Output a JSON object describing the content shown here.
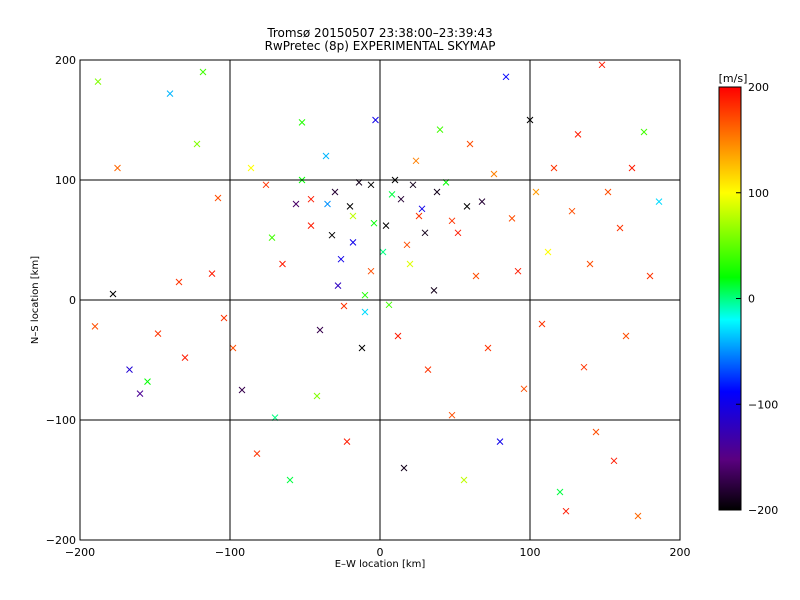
{
  "chart_data": {
    "type": "scatter",
    "title": "Tromsø 20150507 23:38:00–23:39:43",
    "subtitle": "RwPretec (8p) EXPERIMENTAL SKYMAP",
    "xlabel": "E–W location [km]",
    "ylabel": "N–S location [km]",
    "xlim": [
      -200,
      200
    ],
    "ylim": [
      -200,
      200
    ],
    "xticks": [
      "−200",
      "−100",
      "0",
      "100",
      "200"
    ],
    "yticks": [
      "−200",
      "−100",
      "0",
      "100",
      "200"
    ],
    "xtick_values": [
      -200,
      -100,
      0,
      100,
      200
    ],
    "ytick_values": [
      -200,
      -100,
      0,
      100,
      200
    ],
    "grid": true,
    "colorbar": {
      "label": "[m/s]",
      "range": [
        -200,
        200
      ],
      "ticks": [
        "200",
        "100",
        "0",
        "−100",
        "−200"
      ],
      "tick_values": [
        200,
        100,
        0,
        -100,
        -200
      ],
      "colors": [
        "#000000",
        "#5a0080",
        "#0000ff",
        "#00ffff",
        "#00ff00",
        "#ffff00",
        "#ff0000"
      ]
    },
    "series": [
      {
        "marker": "x",
        "points": [
          [
            -188,
            182,
            60
          ],
          [
            -175,
            110,
            160
          ],
          [
            -190,
            -22,
            170
          ],
          [
            -178,
            5,
            -210
          ],
          [
            -167,
            -58,
            -110
          ],
          [
            -160,
            -78,
            -140
          ],
          [
            -155,
            -68,
            20
          ],
          [
            -148,
            -28,
            180
          ],
          [
            -140,
            172,
            -40
          ],
          [
            -134,
            15,
            180
          ],
          [
            -130,
            -48,
            190
          ],
          [
            -122,
            130,
            60
          ],
          [
            -118,
            190,
            40
          ],
          [
            -112,
            22,
            190
          ],
          [
            -108,
            85,
            170
          ],
          [
            -104,
            -15,
            180
          ],
          [
            -98,
            -40,
            170
          ],
          [
            -92,
            -75,
            -170
          ],
          [
            -86,
            110,
            100
          ],
          [
            -82,
            -128,
            180
          ],
          [
            -76,
            96,
            180
          ],
          [
            -72,
            52,
            40
          ],
          [
            -70,
            -98,
            0
          ],
          [
            -65,
            30,
            190
          ],
          [
            -60,
            -150,
            10
          ],
          [
            -56,
            80,
            -160
          ],
          [
            -52,
            148,
            30
          ],
          [
            -46,
            62,
            190
          ],
          [
            -42,
            -80,
            60
          ],
          [
            -36,
            120,
            -40
          ],
          [
            -30,
            90,
            -180
          ],
          [
            -26,
            34,
            -100
          ],
          [
            -22,
            -118,
            190
          ],
          [
            -18,
            70,
            80
          ],
          [
            -14,
            98,
            -190
          ],
          [
            -10,
            -10,
            -30
          ],
          [
            -6,
            24,
            170
          ],
          [
            -3,
            150,
            -100
          ],
          [
            4,
            62,
            -200
          ],
          [
            8,
            88,
            10
          ],
          [
            12,
            -30,
            190
          ],
          [
            16,
            -140,
            -190
          ],
          [
            20,
            30,
            90
          ],
          [
            24,
            116,
            150
          ],
          [
            28,
            76,
            -100
          ],
          [
            32,
            -58,
            180
          ],
          [
            36,
            8,
            -190
          ],
          [
            40,
            142,
            40
          ],
          [
            44,
            98,
            20
          ],
          [
            48,
            -96,
            170
          ],
          [
            52,
            56,
            190
          ],
          [
            56,
            -150,
            80
          ],
          [
            60,
            130,
            170
          ],
          [
            64,
            20,
            170
          ],
          [
            68,
            82,
            -180
          ],
          [
            72,
            -40,
            180
          ],
          [
            76,
            105,
            150
          ],
          [
            80,
            -118,
            -100
          ],
          [
            84,
            186,
            -90
          ],
          [
            88,
            68,
            170
          ],
          [
            92,
            24,
            190
          ],
          [
            96,
            -74,
            170
          ],
          [
            100,
            150,
            -200
          ],
          [
            104,
            90,
            140
          ],
          [
            108,
            -20,
            180
          ],
          [
            112,
            40,
            100
          ],
          [
            116,
            110,
            180
          ],
          [
            120,
            -160,
            10
          ],
          [
            124,
            -176,
            190
          ],
          [
            128,
            74,
            170
          ],
          [
            132,
            138,
            190
          ],
          [
            136,
            -56,
            180
          ],
          [
            140,
            30,
            170
          ],
          [
            144,
            -110,
            170
          ],
          [
            148,
            196,
            190
          ],
          [
            152,
            90,
            170
          ],
          [
            156,
            -134,
            190
          ],
          [
            160,
            60,
            180
          ],
          [
            164,
            -30,
            170
          ],
          [
            168,
            110,
            190
          ],
          [
            172,
            -180,
            160
          ],
          [
            176,
            140,
            40
          ],
          [
            180,
            20,
            180
          ],
          [
            186,
            82,
            -30
          ],
          [
            -28,
            12,
            -120
          ],
          [
            -10,
            4,
            30
          ],
          [
            6,
            -4,
            40
          ],
          [
            -18,
            48,
            -100
          ],
          [
            -35,
            80,
            -50
          ],
          [
            14,
            84,
            -180
          ],
          [
            -40,
            -25,
            -170
          ],
          [
            30,
            56,
            -190
          ],
          [
            -32,
            54,
            -210
          ],
          [
            -20,
            78,
            -200
          ],
          [
            2,
            40,
            0
          ],
          [
            -46,
            84,
            190
          ],
          [
            -4,
            64,
            20
          ],
          [
            18,
            46,
            170
          ],
          [
            26,
            70,
            180
          ],
          [
            -12,
            -40,
            -200
          ],
          [
            38,
            90,
            -190
          ],
          [
            -24,
            -5,
            180
          ],
          [
            48,
            66,
            180
          ],
          [
            58,
            78,
            -200
          ],
          [
            -52,
            100,
            20
          ],
          [
            10,
            100,
            -200
          ],
          [
            22,
            96,
            -190
          ],
          [
            -6,
            96,
            -200
          ]
        ]
      },
      {
        "marker": "dot",
        "points": []
      }
    ]
  }
}
